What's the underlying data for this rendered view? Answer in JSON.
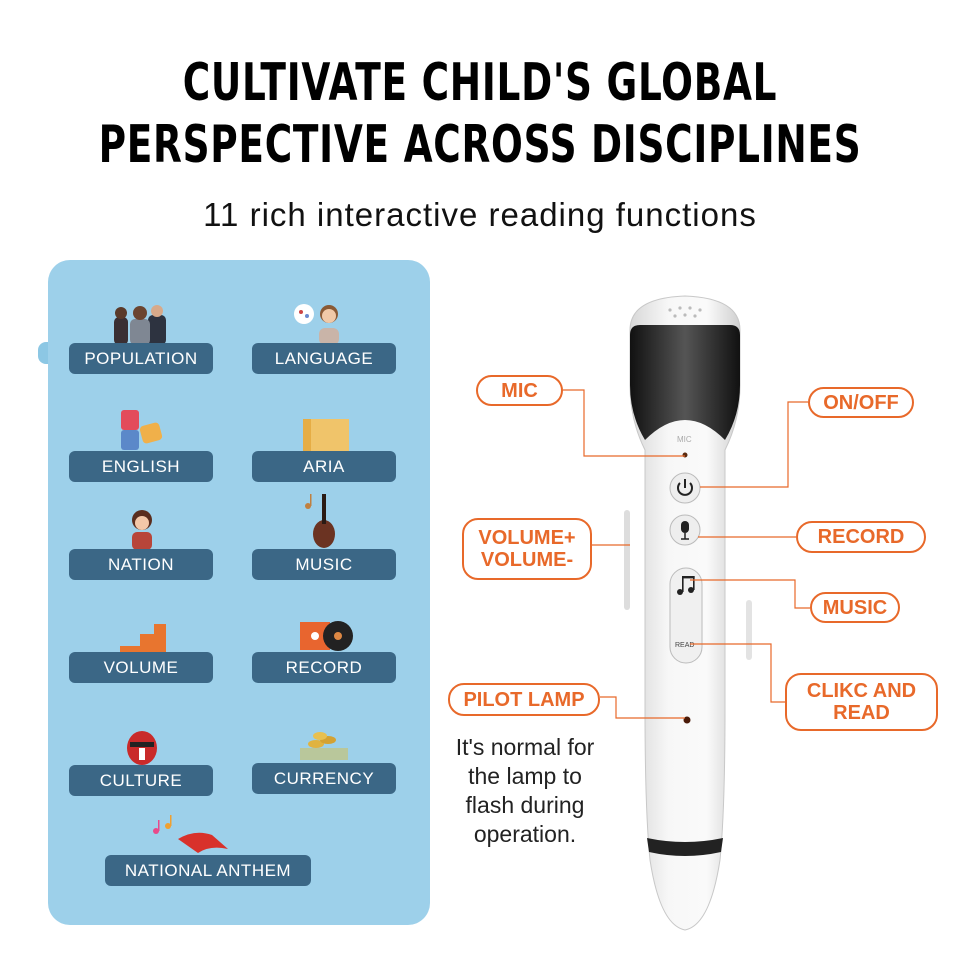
{
  "header": {
    "title_line1": "CULTIVATE CHILD'S GLOBAL",
    "title_line2": "PERSPECTIVE ACROSS DISCIPLINES",
    "subtitle": "11 rich interactive reading functions"
  },
  "functions": [
    {
      "label": "POPULATION",
      "icon": "people-icon"
    },
    {
      "label": "LANGUAGE",
      "icon": "speaker-woman-icon"
    },
    {
      "label": "ENGLISH",
      "icon": "abc-puzzle-icon"
    },
    {
      "label": "ARIA",
      "icon": "songbook-icon"
    },
    {
      "label": "NATION",
      "icon": "costume-girl-icon"
    },
    {
      "label": "MUSIC",
      "icon": "violin-icon"
    },
    {
      "label": "VOLUME",
      "icon": "volume-steps-icon"
    },
    {
      "label": "RECORD",
      "icon": "vinyl-record-icon"
    },
    {
      "label": "CULTURE",
      "icon": "opera-mask-icon"
    },
    {
      "label": "CURRENCY",
      "icon": "coins-icon"
    },
    {
      "label": "NATIONAL ANTHEM",
      "icon": "flag-notes-icon"
    }
  ],
  "pen": {
    "mic_text": "MIC",
    "read_text": "READ"
  },
  "callouts": {
    "mic": "MIC",
    "on_off": "ON/OFF",
    "volume_up": "VOLUME+",
    "volume_down": "VOLUME-",
    "record": "RECORD",
    "music": "MUSIC",
    "click_read_1": "CLIKC AND",
    "click_read_2": "READ",
    "pilot_lamp": "PILOT LAMP"
  },
  "note": {
    "line1": "It's normal for",
    "line2": "the lamp to",
    "line3": "flash during",
    "line4": "operation."
  },
  "colors": {
    "accent": "#e8692a",
    "panel": "#9dd0ea",
    "pill": "#3b6786"
  }
}
